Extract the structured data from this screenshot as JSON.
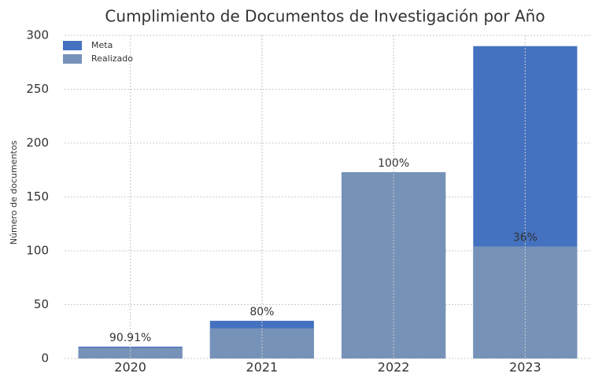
{
  "chart_data": {
    "type": "bar",
    "title": "Cumplimiento de Documentos de Investigación por Año",
    "y_label": "Número de documentos",
    "categories": [
      "2020",
      "2021",
      "2022",
      "2023"
    ],
    "series": [
      {
        "name": "Meta",
        "color": "#4472c0",
        "values": [
          11,
          35,
          173,
          290
        ]
      },
      {
        "name": "Realizado",
        "color": "#7792b8",
        "values": [
          10,
          28,
          173,
          104
        ]
      }
    ],
    "annotations": [
      "90.91%",
      "80%",
      "100%",
      "36%"
    ],
    "ylim": [
      0,
      300
    ],
    "yticks": [
      0,
      50,
      100,
      150,
      200,
      250,
      300
    ],
    "grid": true,
    "legend": "upper left"
  }
}
